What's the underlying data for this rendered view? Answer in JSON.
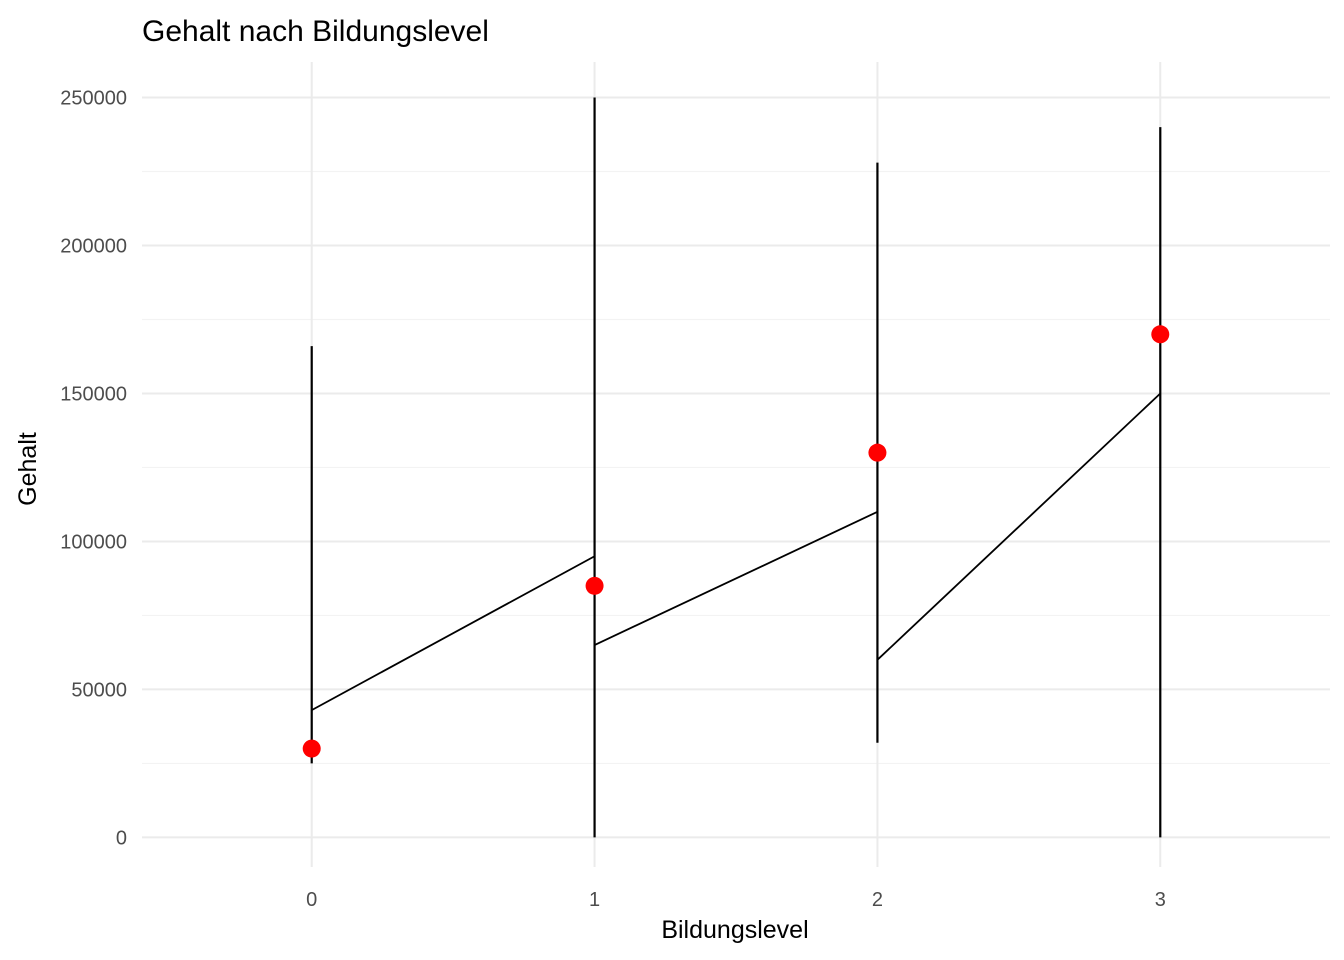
{
  "chart_data": {
    "type": "line",
    "title": "Gehalt nach Bildungslevel",
    "xlabel": "Bildungslevel",
    "ylabel": "Gehalt",
    "x_categories": [
      "0",
      "1",
      "2",
      "3"
    ],
    "xlim": [
      -0.6,
      3.6
    ],
    "ylim": [
      -10000,
      262000
    ],
    "y_ticks": [
      0,
      50000,
      100000,
      150000,
      200000,
      250000
    ],
    "y_tick_labels": [
      "0",
      "50000",
      "100000",
      "150000",
      "200000",
      "250000"
    ],
    "grid": true,
    "legend": "none",
    "series": [
      {
        "type": "vertical-ranges",
        "color": "#000000",
        "values": [
          {
            "x": 0,
            "ymin": 25000,
            "ymax": 166000
          },
          {
            "x": 1,
            "ymin": 0,
            "ymax": 250000
          },
          {
            "x": 2,
            "ymin": 32000,
            "ymax": 228000
          },
          {
            "x": 3,
            "ymin": 0,
            "ymax": 240000
          }
        ]
      },
      {
        "type": "line-segments",
        "color": "#000000",
        "values": [
          {
            "x1": 0,
            "y1": 43000,
            "x2": 1,
            "y2": 95000
          },
          {
            "x1": 1,
            "y1": 65000,
            "x2": 2,
            "y2": 110000
          },
          {
            "x1": 2,
            "y1": 60000,
            "x2": 3,
            "y2": 150000
          }
        ]
      },
      {
        "type": "points",
        "color": "#ff0000",
        "values": [
          {
            "x": 0,
            "y": 30000
          },
          {
            "x": 1,
            "y": 85000
          },
          {
            "x": 2,
            "y": 130000
          },
          {
            "x": 3,
            "y": 170000
          }
        ]
      }
    ]
  }
}
